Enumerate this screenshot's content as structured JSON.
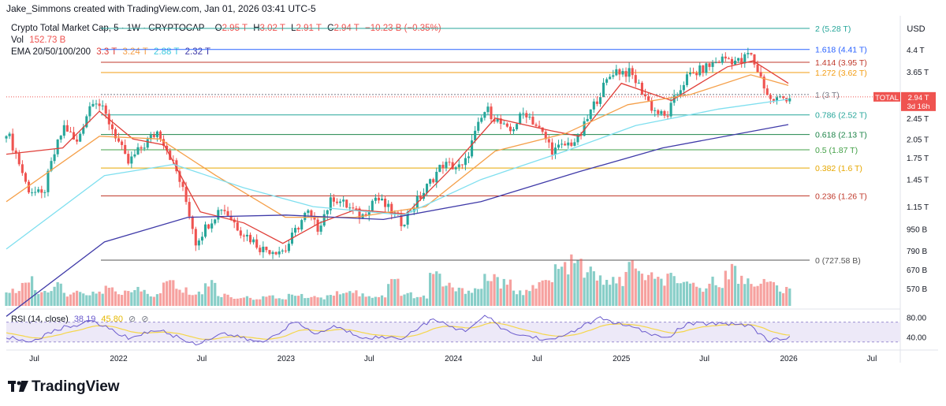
{
  "header": {
    "credit": "Jake_Simmons created with TradingView.com, Jan 01, 2026 03:41 UTC-5",
    "symbol": "Crypto Total Market Cap, 5 · 1W · CRYPTOCAP",
    "ohlc": {
      "o_label": "O",
      "o": "2.95 T",
      "h_label": "H",
      "h": "3.02 T",
      "l_label": "L",
      "l": "2.91 T",
      "c_label": "C",
      "c": "2.94 T",
      "change": "−10.23 B (−0.35%)"
    },
    "vol_label": "Vol",
    "vol": "152.73 B",
    "ema_label": "EMA 20/50/100/200",
    "ema_values": [
      "3.3 T",
      "3.24 T",
      "2.88 T",
      "2.32 T"
    ],
    "rsi_label": "RSI (14, close)",
    "rsi_value": "38.19",
    "rsi_ma": "45.80"
  },
  "colors": {
    "up": "#26a69a",
    "down": "#ef5350",
    "ema20": "#e0403a",
    "ema50": "#f5a04a",
    "ema100": "#7fdfef",
    "ema200": "#3f3aa8",
    "rsi": "#6a5acd",
    "rsi_ma": "#f5d64a",
    "rsi_band": "#ede9f8"
  },
  "chart_data": {
    "type": "candlestick",
    "currency_label": "USD",
    "y_ticks": [
      "4.4 T",
      "3.65 T",
      "2.45 T",
      "2.05 T",
      "1.75 T",
      "1.45 T",
      "1.15 T",
      "950 B",
      "790 B",
      "670 B",
      "570 B"
    ],
    "y_tick_values": [
      4.4,
      3.65,
      2.45,
      2.05,
      1.75,
      1.45,
      1.15,
      0.95,
      0.79,
      0.67,
      0.57
    ],
    "x_ticks": [
      "Jul",
      "2022",
      "Jul",
      "2023",
      "Jul",
      "2024",
      "Jul",
      "2025",
      "Jul",
      "2026",
      "Jul"
    ],
    "x_tick_dates": [
      "2021-07",
      "2022-01",
      "2022-07",
      "2023-01",
      "2023-07",
      "2024-01",
      "2024-07",
      "2025-01",
      "2025-07",
      "2026-01",
      "2026-07"
    ],
    "price_label": {
      "name": "TOTAL",
      "value": "2.94 T",
      "countdown": "3d 16h"
    },
    "fib_levels": [
      {
        "label": "2 (5.28 T)",
        "ratio": 2,
        "value": 5.28,
        "color": "#26a69a"
      },
      {
        "label": "1.618 (4.41 T)",
        "ratio": 1.618,
        "value": 4.41,
        "color": "#2962ff"
      },
      {
        "label": "1.414 (3.95 T)",
        "ratio": 1.414,
        "value": 3.95,
        "color": "#c0392b"
      },
      {
        "label": "1.272 (3.62 T)",
        "ratio": 1.272,
        "value": 3.62,
        "color": "#f39c12"
      },
      {
        "label": "1 (3 T)",
        "ratio": 1,
        "value": 3.0,
        "color": "#787b86"
      },
      {
        "label": "0.786 (2.52 T)",
        "ratio": 0.786,
        "value": 2.52,
        "color": "#26a69a"
      },
      {
        "label": "0.618 (2.13 T)",
        "ratio": 0.618,
        "value": 2.13,
        "color": "#1e8449"
      },
      {
        "label": "0.5 (1.87 T)",
        "ratio": 0.5,
        "value": 1.87,
        "color": "#43a047"
      },
      {
        "label": "0.382 (1.6 T)",
        "ratio": 0.382,
        "value": 1.6,
        "color": "#e6a700"
      },
      {
        "label": "0.236 (1.26 T)",
        "ratio": 0.236,
        "value": 1.26,
        "color": "#c0392b"
      },
      {
        "label": "0 (727.58 B)",
        "ratio": 0,
        "value": 0.72758,
        "color": "#555555"
      }
    ],
    "price_anchors": [
      [
        "2021-05-01",
        2.2
      ],
      [
        "2021-06-15",
        1.35
      ],
      [
        "2021-07-20",
        1.25
      ],
      [
        "2021-09-05",
        2.3
      ],
      [
        "2021-10-01",
        1.95
      ],
      [
        "2021-11-08",
        2.95
      ],
      [
        "2021-12-15",
        2.3
      ],
      [
        "2022-01-20",
        1.65
      ],
      [
        "2022-03-28",
        2.2
      ],
      [
        "2022-05-10",
        1.5
      ],
      [
        "2022-06-18",
        0.85
      ],
      [
        "2022-08-14",
        1.15
      ],
      [
        "2022-09-20",
        0.95
      ],
      [
        "2022-11-09",
        0.8
      ],
      [
        "2022-12-30",
        0.79
      ],
      [
        "2023-02-16",
        1.1
      ],
      [
        "2023-03-10",
        0.95
      ],
      [
        "2023-04-14",
        1.25
      ],
      [
        "2023-06-15",
        1.05
      ],
      [
        "2023-07-14",
        1.25
      ],
      [
        "2023-09-11",
        1.0
      ],
      [
        "2023-10-28",
        1.3
      ],
      [
        "2023-12-08",
        1.65
      ],
      [
        "2024-01-23",
        1.6
      ],
      [
        "2024-03-12",
        2.65
      ],
      [
        "2024-05-01",
        2.15
      ],
      [
        "2024-06-05",
        2.6
      ],
      [
        "2024-08-05",
        1.85
      ],
      [
        "2024-10-01",
        2.05
      ],
      [
        "2024-12-16",
        3.7
      ],
      [
        "2025-01-20",
        3.6
      ],
      [
        "2025-03-10",
        2.65
      ],
      [
        "2025-04-08",
        2.45
      ],
      [
        "2025-05-22",
        3.45
      ],
      [
        "2025-08-14",
        4.1
      ],
      [
        "2025-09-20",
        3.95
      ],
      [
        "2025-10-06",
        4.3
      ],
      [
        "2025-11-20",
        2.85
      ],
      [
        "2025-12-31",
        2.94
      ]
    ],
    "ema_lines": {
      "ema20": [
        [
          "2021-05-01",
          1.8
        ],
        [
          "2021-09-01",
          1.9
        ],
        [
          "2021-11-20",
          2.6
        ],
        [
          "2022-02-01",
          2.05
        ],
        [
          "2022-04-10",
          1.95
        ],
        [
          "2022-06-28",
          1.1
        ],
        [
          "2022-10-01",
          1.0
        ],
        [
          "2022-12-25",
          0.84
        ],
        [
          "2023-03-15",
          1.0
        ],
        [
          "2023-06-01",
          1.12
        ],
        [
          "2023-09-20",
          1.08
        ],
        [
          "2023-12-20",
          1.55
        ],
        [
          "2024-04-01",
          2.45
        ],
        [
          "2024-08-01",
          2.2
        ],
        [
          "2024-10-01",
          2.1
        ],
        [
          "2025-01-01",
          3.3
        ],
        [
          "2025-04-20",
          2.85
        ],
        [
          "2025-08-20",
          3.8
        ],
        [
          "2025-10-15",
          4.0
        ],
        [
          "2025-12-31",
          3.3
        ]
      ],
      "ema50": [
        [
          "2021-05-01",
          1.2
        ],
        [
          "2021-11-20",
          2.1
        ],
        [
          "2022-04-01",
          2.05
        ],
        [
          "2022-08-01",
          1.5
        ],
        [
          "2022-12-30",
          1.05
        ],
        [
          "2023-06-01",
          1.05
        ],
        [
          "2023-11-01",
          1.15
        ],
        [
          "2024-04-01",
          1.85
        ],
        [
          "2024-09-01",
          2.15
        ],
        [
          "2025-01-15",
          2.75
        ],
        [
          "2025-06-01",
          3.0
        ],
        [
          "2025-10-10",
          3.55
        ],
        [
          "2025-12-31",
          3.24
        ]
      ],
      "ema100": [
        [
          "2021-05-01",
          0.8
        ],
        [
          "2021-12-01",
          1.5
        ],
        [
          "2022-05-01",
          1.65
        ],
        [
          "2022-10-01",
          1.35
        ],
        [
          "2023-03-01",
          1.15
        ],
        [
          "2023-09-15",
          1.07
        ],
        [
          "2024-03-01",
          1.45
        ],
        [
          "2024-09-01",
          1.85
        ],
        [
          "2025-02-01",
          2.3
        ],
        [
          "2025-08-01",
          2.65
        ],
        [
          "2025-12-31",
          2.88
        ]
      ],
      "ema200": [
        [
          "2021-05-01",
          0.45
        ],
        [
          "2021-12-01",
          0.85
        ],
        [
          "2022-06-01",
          1.05
        ],
        [
          "2023-01-01",
          1.07
        ],
        [
          "2023-08-01",
          1.03
        ],
        [
          "2024-03-01",
          1.2
        ],
        [
          "2024-10-01",
          1.55
        ],
        [
          "2025-04-01",
          1.9
        ],
        [
          "2025-12-31",
          2.32
        ]
      ]
    },
    "rsi": {
      "ticks": [
        "80.00",
        "40.00"
      ],
      "tick_values": [
        80,
        40
      ],
      "band": [
        30,
        70
      ],
      "anchors": [
        [
          "2021-05-01",
          40
        ],
        [
          "2021-06-20",
          30
        ],
        [
          "2021-09-05",
          60
        ],
        [
          "2021-11-08",
          72
        ],
        [
          "2022-01-20",
          38
        ],
        [
          "2022-03-28",
          55
        ],
        [
          "2022-06-18",
          25
        ],
        [
          "2022-08-14",
          48
        ],
        [
          "2022-11-09",
          28
        ],
        [
          "2023-01-20",
          70
        ],
        [
          "2023-03-10",
          45
        ],
        [
          "2023-04-14",
          62
        ],
        [
          "2023-06-15",
          40
        ],
        [
          "2023-09-11",
          38
        ],
        [
          "2023-11-15",
          75
        ],
        [
          "2024-01-23",
          52
        ],
        [
          "2024-03-12",
          82
        ],
        [
          "2024-05-01",
          48
        ],
        [
          "2024-08-05",
          33
        ],
        [
          "2024-11-15",
          78
        ],
        [
          "2025-01-20",
          60
        ],
        [
          "2025-04-08",
          36
        ],
        [
          "2025-05-22",
          66
        ],
        [
          "2025-08-14",
          68
        ],
        [
          "2025-10-06",
          64
        ],
        [
          "2025-11-20",
          32
        ],
        [
          "2025-12-31",
          38
        ]
      ]
    },
    "volume_scale_note": "volume shown relative",
    "volume_profile": [
      0.35,
      0.55,
      0.3,
      0.45,
      0.25,
      0.3,
      0.28,
      0.4,
      0.3,
      0.35,
      0.25,
      0.55,
      0.35,
      0.3,
      0.5,
      0.25,
      0.2,
      0.18,
      0.2,
      0.18,
      0.25,
      0.22,
      0.2,
      0.3,
      0.35,
      0.25,
      0.22,
      0.55,
      0.3,
      0.2,
      0.7,
      0.45,
      0.35,
      0.4,
      0.65,
      0.5,
      0.3,
      0.45,
      0.55,
      0.85,
      0.95,
      0.75,
      0.6,
      0.55,
      0.9,
      0.7,
      0.55,
      0.65,
      0.45,
      0.4,
      0.55,
      0.8,
      0.6,
      0.55,
      0.5,
      0.35
    ]
  }
}
